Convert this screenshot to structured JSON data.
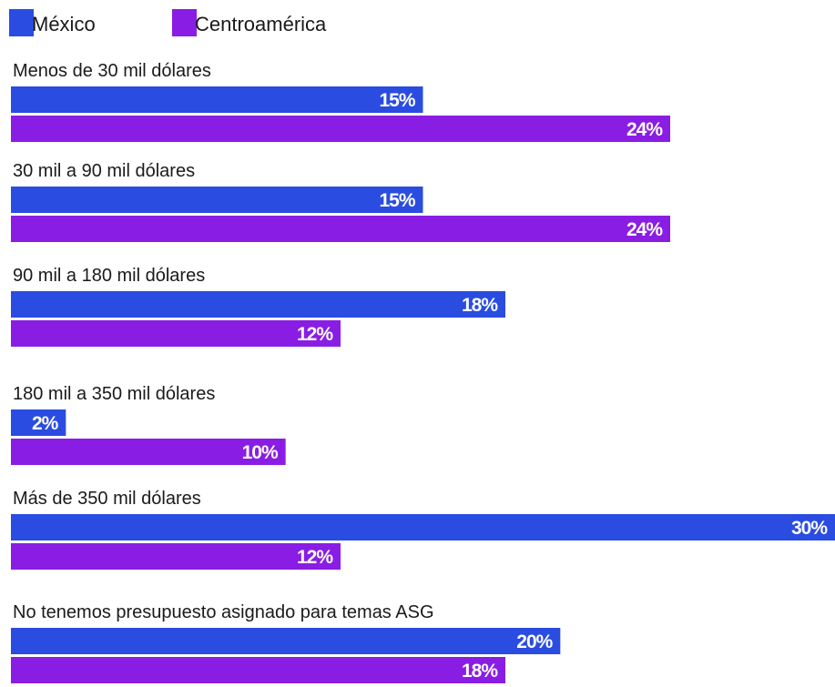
{
  "chart_data": {
    "type": "bar",
    "orientation": "horizontal",
    "categories": [
      "Menos de 30 mil dólares",
      "30 mil a 90 mil dólares",
      "90 mil a 180 mil dólares",
      "180 mil a 350 mil dólares",
      "Más de 350 mil dólares",
      "No tenemos presupuesto asignado para temas ASG"
    ],
    "series": [
      {
        "name": "México",
        "color": "#2a4ce0",
        "values": [
          15,
          15,
          18,
          2,
          30,
          20
        ],
        "labels": [
          "15%",
          "15%",
          "18%",
          "2%",
          "30%",
          "20%"
        ]
      },
      {
        "name": "Centroamérica",
        "color": "#8a1de3",
        "values": [
          24,
          24,
          12,
          10,
          12,
          18
        ],
        "labels": [
          "24%",
          "24%",
          "12%",
          "10%",
          "12%",
          "18%"
        ]
      }
    ],
    "unit": "%",
    "xlim": [
      0,
      30
    ],
    "legend": "top-left",
    "grid": false
  }
}
